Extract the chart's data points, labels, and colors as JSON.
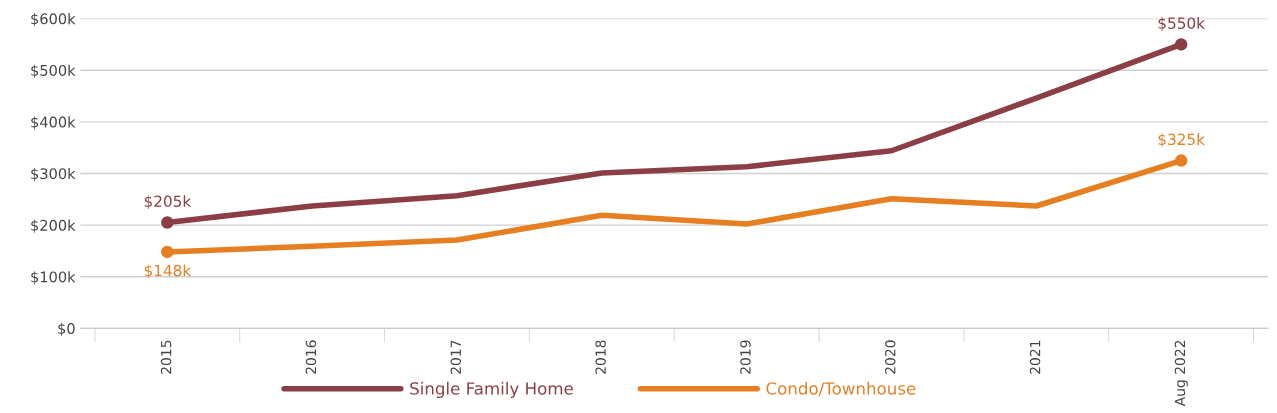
{
  "chart_data": {
    "type": "line",
    "categories": [
      "2015",
      "2016",
      "2017",
      "2018",
      "2019",
      "2020",
      "2021",
      "Aug 2022"
    ],
    "series": [
      {
        "name": "Single Family Home",
        "color": "#8b3f45",
        "values": [
          205,
          237,
          257,
          301,
          313,
          344,
          446,
          550
        ],
        "value_labels": [
          "$205k",
          null,
          null,
          null,
          null,
          null,
          null,
          "$550k"
        ]
      },
      {
        "name": "Condo/Townhouse",
        "color": "#e67e22",
        "values": [
          148,
          159,
          171,
          219,
          202,
          251,
          237,
          325
        ],
        "value_labels": [
          "$148k",
          null,
          null,
          null,
          null,
          null,
          null,
          "$325k"
        ]
      }
    ],
    "ylim": [
      0,
      600
    ],
    "yticks": [
      {
        "value": 0,
        "label": "$0"
      },
      {
        "value": 100,
        "label": "$100k"
      },
      {
        "value": 200,
        "label": "$200k"
      },
      {
        "value": 300,
        "label": "$300k"
      },
      {
        "value": 400,
        "label": "$400k"
      },
      {
        "value": 500,
        "label": "$500k"
      },
      {
        "value": 600,
        "label": "$600k"
      }
    ],
    "grid": "y",
    "legend": "bottom",
    "line_style": "solid"
  }
}
